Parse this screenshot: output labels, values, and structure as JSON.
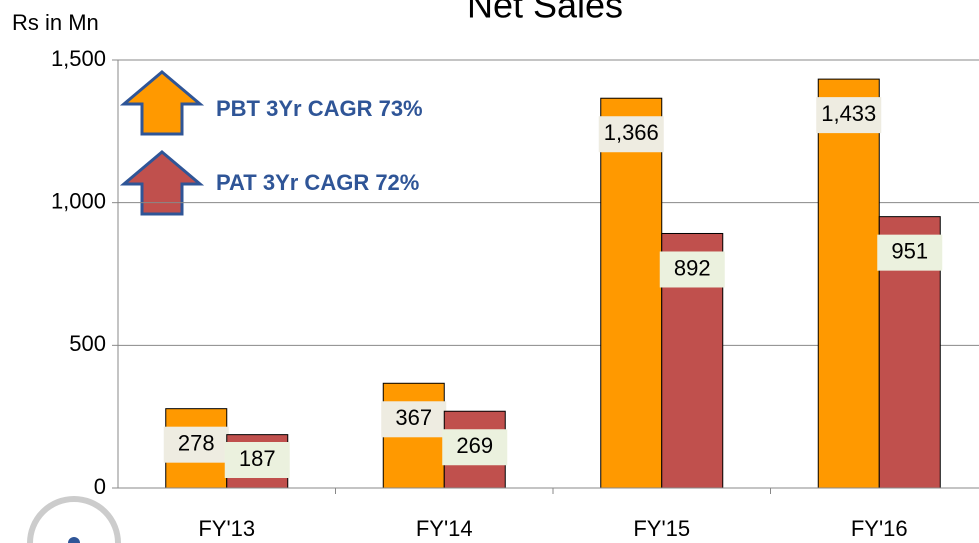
{
  "chart_data": {
    "type": "bar",
    "title": "Net Sales",
    "y_label": "Rs in Mn",
    "annotations": [
      "PBT 3Yr CAGR 73%",
      "PAT 3Yr CAGR 72%"
    ],
    "categories": [
      "FY'13",
      "FY'14",
      "FY'15",
      "FY'16"
    ],
    "series": [
      {
        "color": "#ff9900",
        "values": [
          278,
          367,
          1366,
          1433
        ],
        "value_labels": [
          "278",
          "367",
          "1,366",
          "1,433"
        ]
      },
      {
        "color": "#c0504d",
        "values": [
          187,
          269,
          892,
          951
        ]
      }
    ],
    "ylim": [
      0,
      1500
    ],
    "yticks": [
      0,
      500,
      {
        "value": 1000,
        "label": "1,000"
      },
      {
        "value": 1500,
        "label": "1,500"
      }
    ],
    "grid": true
  }
}
